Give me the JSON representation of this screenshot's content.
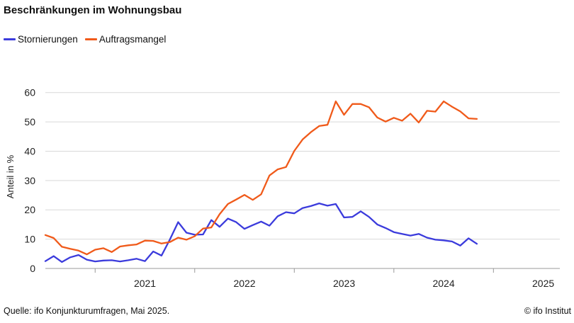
{
  "title": "Beschränkungen im Wohnungsbau",
  "footer": {
    "source": "Quelle: ifo Konjunkturumfragen, Mai 2025.",
    "copyright": "© ifo Institut"
  },
  "colors": {
    "stornierungen": "#3b3bdc",
    "auftragsmangel": "#f05a1a",
    "grid": "#d9d9d9",
    "axis": "#999999"
  },
  "chart_data": {
    "type": "line",
    "title": "Beschränkungen im Wohnungsbau",
    "xlabel": "",
    "ylabel": "Anteil in %",
    "x_tick_labels": [
      "2021",
      "2022",
      "2023",
      "2024",
      "2025"
    ],
    "y_ticks": [
      0,
      10,
      20,
      30,
      40,
      50,
      60
    ],
    "ylim": [
      0,
      65
    ],
    "xlim": [
      "2020-07",
      "2025-09"
    ],
    "grid": "horizontal",
    "legend": "top-left",
    "x": [
      "2020-07",
      "2020-08",
      "2020-09",
      "2020-10",
      "2020-11",
      "2020-12",
      "2021-01",
      "2021-02",
      "2021-03",
      "2021-04",
      "2021-05",
      "2021-06",
      "2021-07",
      "2021-08",
      "2021-09",
      "2021-10",
      "2021-11",
      "2021-12",
      "2022-01",
      "2022-02",
      "2022-03",
      "2022-04",
      "2022-05",
      "2022-06",
      "2022-07",
      "2022-08",
      "2022-09",
      "2022-10",
      "2022-11",
      "2022-12",
      "2023-01",
      "2023-02",
      "2023-03",
      "2023-04",
      "2023-05",
      "2023-06",
      "2023-07",
      "2023-08",
      "2023-09",
      "2023-10",
      "2023-11",
      "2023-12",
      "2024-01",
      "2024-02",
      "2024-03",
      "2024-04",
      "2024-05",
      "2024-06",
      "2024-07",
      "2024-08",
      "2024-09",
      "2024-10",
      "2024-11"
    ],
    "series": [
      {
        "name": "Stornierungen",
        "values": [
          2.5,
          4.2,
          2.2,
          3.8,
          4.6,
          3.0,
          2.4,
          2.7,
          2.8,
          2.4,
          2.8,
          3.3,
          2.5,
          5.8,
          4.4,
          9.8,
          15.8,
          12.2,
          11.5,
          11.6,
          16.5,
          14.2,
          17.0,
          15.8,
          13.5,
          14.8,
          16.0,
          14.6,
          17.8,
          19.2,
          18.8,
          20.6,
          21.3,
          22.2,
          21.4,
          22.0,
          17.4,
          17.6,
          19.5,
          17.6,
          15.0,
          13.8,
          12.4,
          11.8,
          11.2,
          11.8,
          10.5,
          9.8,
          9.6,
          9.2,
          7.8,
          10.3,
          8.4
        ]
      },
      {
        "name": "Auftragsmangel",
        "values": [
          11.4,
          10.4,
          7.4,
          6.7,
          6.1,
          4.8,
          6.4,
          6.9,
          5.6,
          7.5,
          7.9,
          8.2,
          9.5,
          9.4,
          8.5,
          9.0,
          10.5,
          9.8,
          11.0,
          13.6,
          14.0,
          18.5,
          22.0,
          23.5,
          25.1,
          23.4,
          25.3,
          31.7,
          33.8,
          34.6,
          40.1,
          44.0,
          46.5,
          48.6,
          49.0,
          57.0,
          52.4,
          56.1,
          56.1,
          55.0,
          51.5,
          50.1,
          51.4,
          50.4,
          52.8,
          49.8,
          53.8,
          53.5,
          57.0,
          55.2,
          53.6,
          51.2,
          51.0
        ]
      }
    ]
  }
}
